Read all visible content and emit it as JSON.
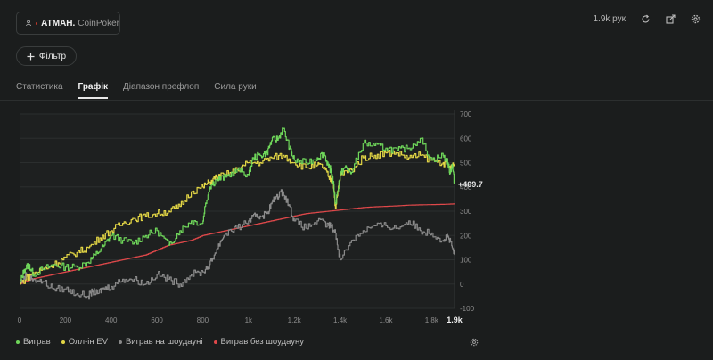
{
  "header": {
    "player_name": "ATMAH.",
    "room": "CoinPoker",
    "hands_count": "1.9k рук"
  },
  "filter_label": "Фільтр",
  "tabs": [
    {
      "label": "Статистика",
      "active": false
    },
    {
      "label": "Графік",
      "active": true
    },
    {
      "label": "Діапазон префлоп",
      "active": false
    },
    {
      "label": "Сила руки",
      "active": false
    }
  ],
  "icons": [
    "user-icon",
    "refresh-icon",
    "export-icon",
    "gear-icon",
    "plus-icon"
  ],
  "colors": {
    "won": "#6fd65a",
    "allin_ev": "#e3d645",
    "showdown": "#8a8a8a",
    "no_showdown": "#e0484a"
  },
  "chart_data": {
    "type": "line",
    "x_ticks": [
      "0",
      "200",
      "400",
      "600",
      "800",
      "1k",
      "1.2k",
      "1.4k",
      "1.6k",
      "1.8k"
    ],
    "x_end_label": "1.9k",
    "y_ticks": [
      "700",
      "600",
      "500",
      "400",
      "300",
      "200",
      "100",
      "0",
      "-100"
    ],
    "xlim": [
      0,
      1900
    ],
    "ylim": [
      -100,
      700
    ],
    "end_value_label": "+409.7",
    "series": [
      {
        "name": "Виграв",
        "color": "#6fd65a",
        "x": [
          0,
          20,
          40,
          60,
          100,
          150,
          200,
          250,
          300,
          330,
          370,
          400,
          450,
          500,
          550,
          600,
          650,
          700,
          750,
          800,
          810,
          830,
          860,
          900,
          950,
          1000,
          1020,
          1050,
          1080,
          1100,
          1130,
          1150,
          1180,
          1200,
          1250,
          1300,
          1330,
          1350,
          1360,
          1370,
          1380,
          1400,
          1420,
          1450,
          1500,
          1550,
          1600,
          1650,
          1700,
          1750,
          1800,
          1850,
          1870,
          1880,
          1890,
          1900
        ],
        "y": [
          0,
          60,
          80,
          40,
          60,
          80,
          70,
          70,
          90,
          120,
          160,
          200,
          180,
          170,
          200,
          220,
          160,
          220,
          260,
          250,
          320,
          400,
          430,
          440,
          470,
          450,
          520,
          530,
          540,
          590,
          600,
          640,
          560,
          510,
          500,
          520,
          540,
          480,
          470,
          420,
          330,
          450,
          480,
          460,
          580,
          570,
          560,
          550,
          560,
          600,
          510,
          530,
          500,
          460,
          490,
          410
        ]
      },
      {
        "name": "Олл-ін EV",
        "color": "#e3d645",
        "x": [
          0,
          50,
          100,
          150,
          200,
          250,
          300,
          350,
          400,
          450,
          500,
          550,
          600,
          650,
          700,
          750,
          800,
          830,
          860,
          900,
          950,
          1000,
          1050,
          1100,
          1150,
          1200,
          1250,
          1300,
          1330,
          1350,
          1370,
          1380,
          1400,
          1450,
          1500,
          1550,
          1600,
          1650,
          1700,
          1750,
          1800,
          1850,
          1880,
          1900
        ],
        "y": [
          0,
          40,
          60,
          80,
          110,
          130,
          150,
          190,
          220,
          250,
          270,
          280,
          290,
          300,
          320,
          380,
          400,
          420,
          440,
          450,
          470,
          500,
          500,
          520,
          530,
          500,
          480,
          490,
          480,
          440,
          420,
          310,
          450,
          470,
          520,
          530,
          540,
          540,
          520,
          530,
          510,
          500,
          480,
          490
        ]
      },
      {
        "name": "Виграв на шоудауні",
        "color": "#8a8a8a",
        "x": [
          0,
          30,
          60,
          100,
          150,
          200,
          250,
          300,
          320,
          340,
          360,
          400,
          450,
          500,
          550,
          600,
          650,
          700,
          750,
          800,
          830,
          850,
          880,
          900,
          950,
          1000,
          1030,
          1050,
          1080,
          1100,
          1120,
          1150,
          1180,
          1200,
          1250,
          1300,
          1350,
          1360,
          1380,
          1400,
          1450,
          1500,
          1550,
          1600,
          1650,
          1700,
          1750,
          1800,
          1850,
          1870,
          1890,
          1900
        ],
        "y": [
          0,
          40,
          20,
          10,
          -20,
          -20,
          -40,
          -50,
          -30,
          -40,
          -20,
          -10,
          20,
          20,
          0,
          40,
          20,
          0,
          40,
          50,
          80,
          120,
          180,
          210,
          230,
          260,
          280,
          280,
          290,
          330,
          360,
          380,
          320,
          260,
          230,
          260,
          240,
          240,
          210,
          100,
          180,
          220,
          240,
          240,
          230,
          260,
          220,
          210,
          180,
          200,
          150,
          120
        ]
      },
      {
        "name": "Виграв без шоудауну",
        "color": "#e0484a",
        "x": [
          0,
          50,
          100,
          150,
          200,
          250,
          300,
          350,
          400,
          450,
          500,
          550,
          600,
          650,
          700,
          750,
          800,
          850,
          900,
          950,
          1000,
          1050,
          1100,
          1150,
          1200,
          1250,
          1300,
          1350,
          1400,
          1450,
          1500,
          1550,
          1600,
          1650,
          1700,
          1750,
          1800,
          1850,
          1900
        ],
        "y": [
          0,
          20,
          30,
          40,
          50,
          60,
          70,
          80,
          90,
          100,
          110,
          120,
          140,
          160,
          170,
          180,
          200,
          210,
          220,
          230,
          240,
          250,
          260,
          270,
          280,
          290,
          295,
          300,
          305,
          310,
          315,
          318,
          320,
          322,
          325,
          326,
          327,
          328,
          330
        ]
      }
    ]
  }
}
